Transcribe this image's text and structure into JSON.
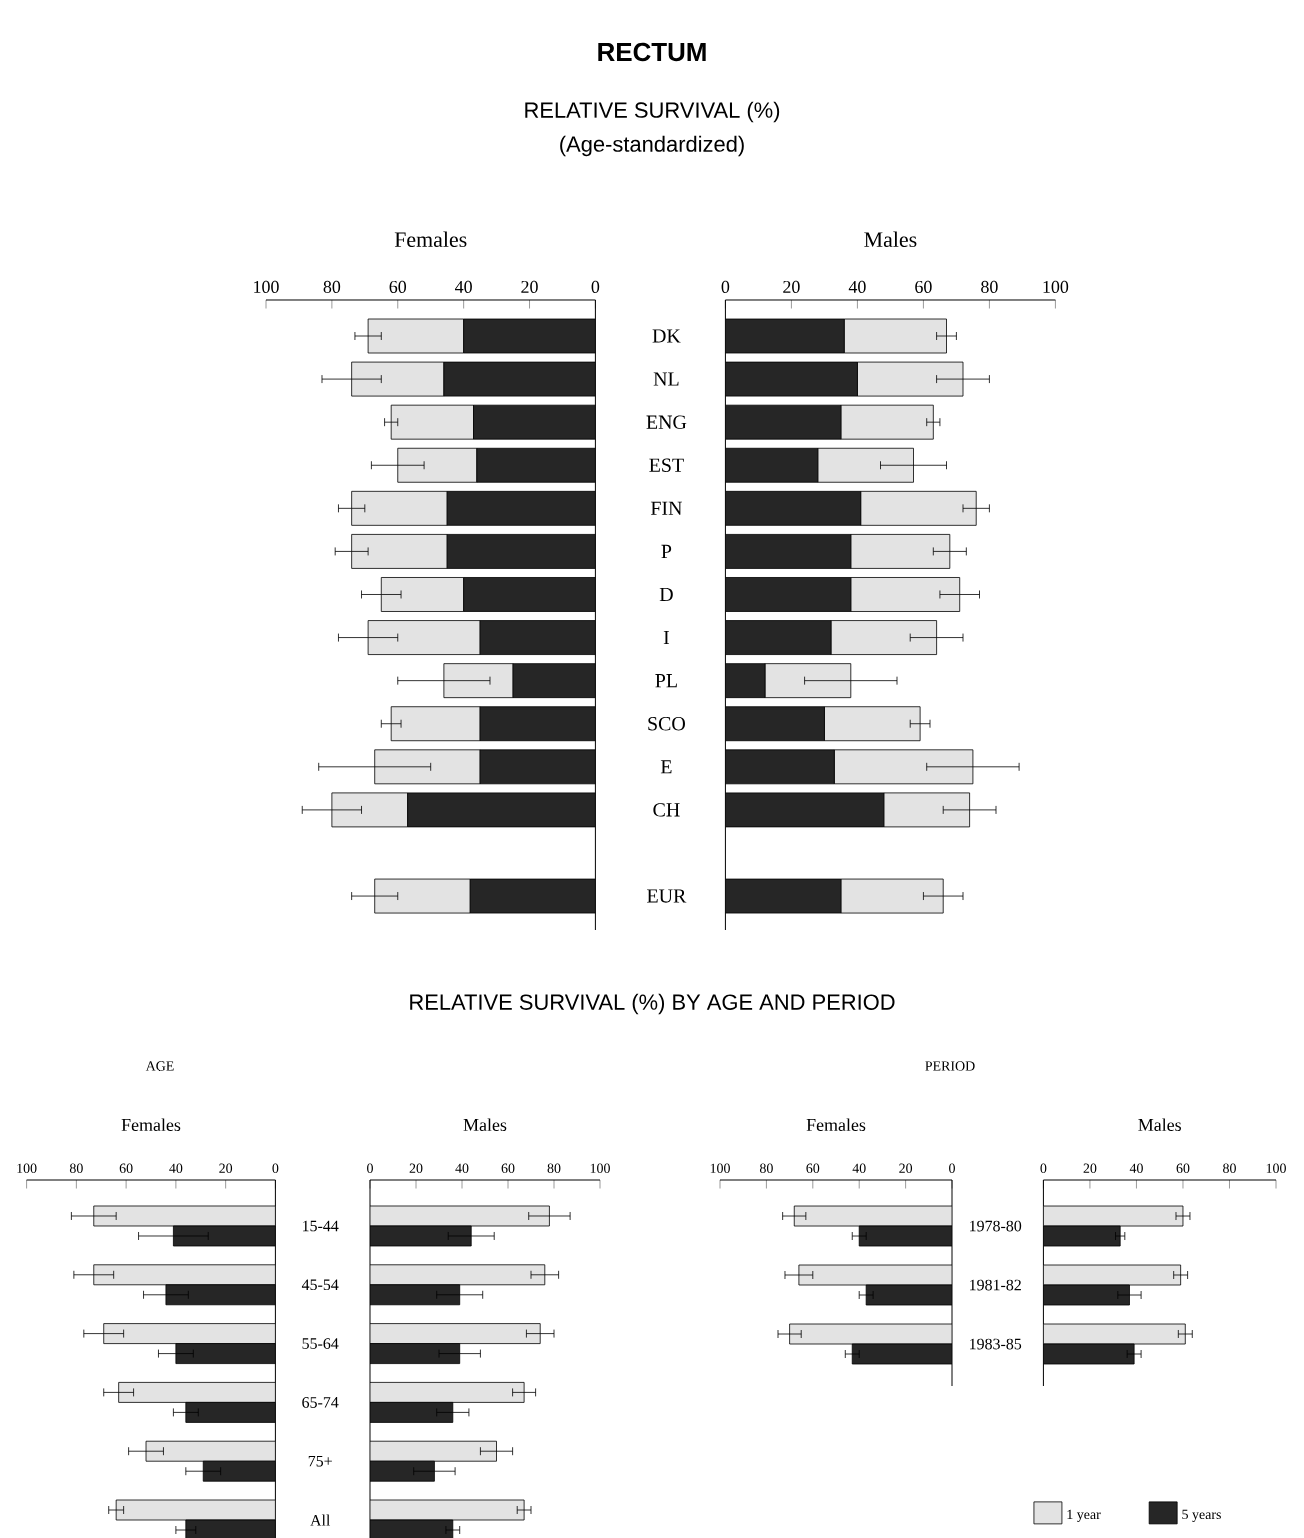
{
  "chart_data": [
    {
      "type": "bar",
      "orientation": "horizontal",
      "stacked": true,
      "title": "Females",
      "annotations": [
        "RECTUM",
        "RELATIVE SURVIVAL (%)",
        "(Age-standardized)"
      ],
      "xlim": [
        100,
        0
      ],
      "xticks": [
        100,
        80,
        60,
        40,
        20,
        0
      ],
      "tick_labels": "x",
      "series": [
        {
          "color": "#262626",
          "values": [
            40,
            46,
            37,
            36,
            45,
            45,
            40,
            35,
            25,
            35,
            35,
            57,
            null,
            38
          ]
        },
        {
          "color": "#e3e3e3",
          "values": [
            29,
            28,
            25,
            24,
            29,
            29,
            25,
            34,
            21,
            27,
            32,
            23,
            null,
            29
          ],
          "errors": [
            4,
            9,
            2,
            8,
            4,
            5,
            6,
            9,
            14,
            3,
            17,
            9,
            null,
            7
          ]
        }
      ]
    },
    {
      "type": "bar",
      "orientation": "horizontal",
      "stacked": true,
      "title": "Males",
      "categories": [
        "DK",
        "NL",
        "ENG",
        "EST",
        "FIN",
        "P",
        "D",
        "I",
        "PL",
        "SCO",
        "E",
        "CH",
        null,
        "EUR"
      ],
      "xlim": [
        0,
        100
      ],
      "xticks": [
        0,
        20,
        40,
        60,
        80,
        100
      ],
      "series": [
        {
          "color": "#262626",
          "values": [
            36,
            40,
            35,
            28,
            41,
            38,
            38,
            32,
            12,
            30,
            33,
            48,
            null,
            35
          ]
        },
        {
          "color": "#e3e3e3",
          "values": [
            31,
            32,
            28,
            29,
            35,
            30,
            33,
            32,
            26,
            29,
            42,
            26,
            null,
            31
          ],
          "errors": [
            3,
            8,
            2,
            10,
            4,
            5,
            6,
            8,
            14,
            3,
            14,
            8,
            null,
            6
          ]
        }
      ]
    },
    {
      "type": "bar",
      "orientation": "horizontal",
      "title": "Females",
      "annotations": [
        "RELATIVE SURVIVAL (%) BY AGE AND PERIOD",
        "AGE"
      ],
      "xlim": [
        100,
        0
      ],
      "xticks": [
        100,
        80,
        60,
        40,
        20,
        0
      ],
      "tick_labels": "x",
      "series": [
        {
          "color": "#e3e3e3",
          "values": [
            73,
            73,
            69,
            63,
            52,
            64
          ],
          "errors": [
            9,
            8,
            8,
            6,
            7,
            3
          ]
        },
        {
          "color": "#262626",
          "values": [
            41,
            44,
            40,
            36,
            29,
            36
          ],
          "errors": [
            14,
            9,
            7,
            5,
            7,
            4
          ]
        }
      ]
    },
    {
      "type": "bar",
      "orientation": "horizontal",
      "title": "Males",
      "categories": [
        "15-44",
        "45-54",
        "55-64",
        "65-74",
        "75+",
        "All"
      ],
      "xlim": [
        0,
        100
      ],
      "xticks": [
        0,
        20,
        40,
        60,
        80,
        100
      ],
      "series": [
        {
          "color": "#e3e3e3",
          "values": [
            78,
            76,
            74,
            67,
            55,
            67
          ],
          "errors": [
            9,
            6,
            6,
            5,
            7,
            3
          ]
        },
        {
          "color": "#262626",
          "values": [
            44,
            39,
            39,
            36,
            28,
            36
          ],
          "errors": [
            10,
            10,
            9,
            7,
            9,
            3
          ]
        }
      ]
    },
    {
      "type": "bar",
      "orientation": "horizontal",
      "title": "Females",
      "annotations": [
        "PERIOD"
      ],
      "xlim": [
        100,
        0
      ],
      "xticks": [
        100,
        80,
        60,
        40,
        20,
        0
      ],
      "tick_labels": "x",
      "series": [
        {
          "color": "#e3e3e3",
          "values": [
            68,
            66,
            70
          ],
          "errors": [
            5,
            6,
            5
          ]
        },
        {
          "color": "#262626",
          "values": [
            40,
            37,
            43
          ],
          "errors": [
            3,
            3,
            3
          ]
        }
      ]
    },
    {
      "type": "bar",
      "orientation": "horizontal",
      "title": "Males",
      "categories": [
        "1978-80",
        "1981-82",
        "1983-85"
      ],
      "xlim": [
        0,
        100
      ],
      "xticks": [
        0,
        20,
        40,
        60,
        80,
        100
      ],
      "legend": "bottom",
      "series": [
        {
          "name": "1 year",
          "color": "#e3e3e3",
          "values": [
            60,
            59,
            61
          ],
          "errors": [
            3,
            3,
            3
          ]
        },
        {
          "name": "5 years",
          "color": "#262626",
          "values": [
            33,
            37,
            39
          ],
          "errors": [
            2,
            5,
            3
          ]
        }
      ]
    }
  ]
}
